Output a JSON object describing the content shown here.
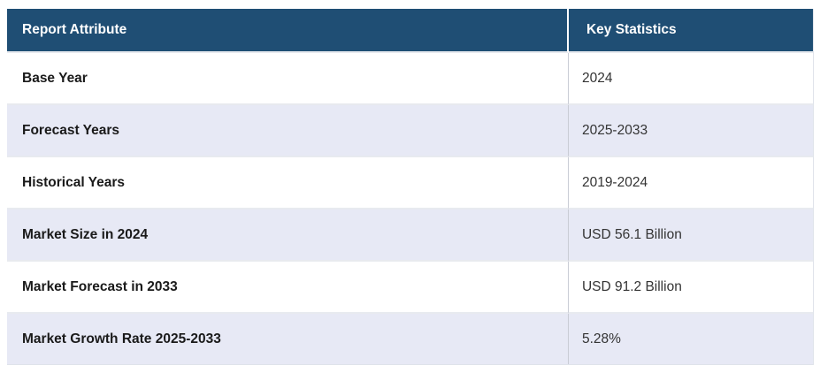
{
  "table": {
    "columns": [
      "Report Attribute",
      "Key Statistics"
    ],
    "rows": [
      {
        "attribute": "Base Year",
        "value": "2024"
      },
      {
        "attribute": "Forecast Years",
        "value": "2025-2033"
      },
      {
        "attribute": "Historical Years",
        "value": "2019-2024"
      },
      {
        "attribute": "Market Size in 2024",
        "value": "USD 56.1 Billion"
      },
      {
        "attribute": "Market Forecast in 2033",
        "value": "USD 91.2 Billion"
      },
      {
        "attribute": "Market Growth Rate 2025-2033",
        "value": "5.28%"
      }
    ]
  },
  "colors": {
    "header_bg": "#1f4e74",
    "header_text": "#ffffff",
    "row_bg": "#ffffff",
    "row_alt_bg": "#e7e9f5",
    "row_border": "#e8eaef",
    "column_divider": "#c9ccd5",
    "attribute_text": "#1a1a1a",
    "value_text": "#333333"
  },
  "chart_data": {
    "type": "table",
    "columns": [
      "Report Attribute",
      "Key Statistics"
    ],
    "rows": [
      [
        "Base Year",
        "2024"
      ],
      [
        "Forecast Years",
        "2025-2033"
      ],
      [
        "Historical Years",
        "2019-2024"
      ],
      [
        "Market Size in 2024",
        "USD 56.1 Billion"
      ],
      [
        "Market Forecast in 2033",
        "USD 91.2 Billion"
      ],
      [
        "Market Growth Rate 2025-2033",
        "5.28%"
      ]
    ],
    "values": {
      "base_year": 2024,
      "forecast_years": "2025-2033",
      "historical_years": "2019-2024",
      "market_size_2024_usd_billion": 56.1,
      "market_forecast_2033_usd_billion": 91.2,
      "market_growth_rate_2025_2033_percent": 5.28
    },
    "layout": {
      "header_style": "dark-navy, bold white text",
      "row_striping": "white / light-lavender alternating, starting white"
    }
  }
}
